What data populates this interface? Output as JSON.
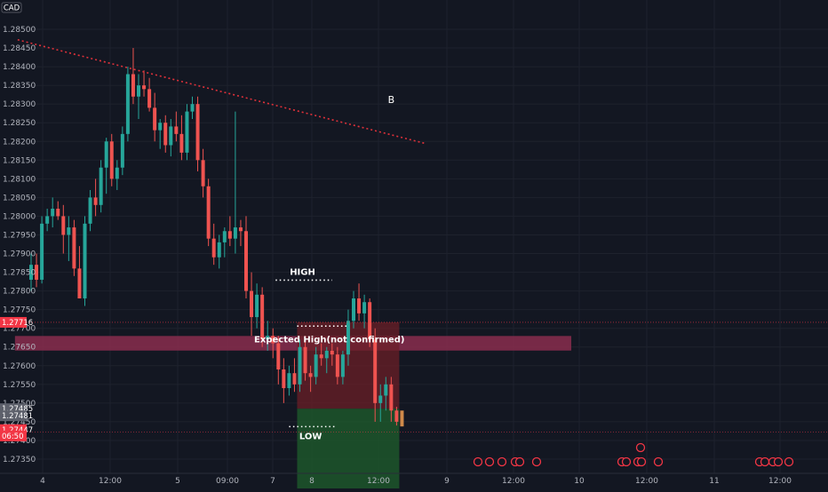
{
  "symbol_tag": "CAD",
  "colors": {
    "background": "#131722",
    "bullish": "#26a69a",
    "bearish": "#ef5350",
    "trendline": "#e0313a",
    "zone": "#8a2d4d",
    "stop_zone": "#6b1f27",
    "target_zone": "#1e5a2c",
    "price_tag_red": "#f23645",
    "price_tag_gray": "#5d606b",
    "axis_text": "#b2b5be",
    "dotted_line": "#ffffff"
  },
  "chart_data": {
    "type": "candlestick",
    "ylim": [
      1.273,
      1.2855
    ],
    "y_ticks": [
      "1.28500",
      "1.28450",
      "1.28400",
      "1.28350",
      "1.28300",
      "1.28250",
      "1.28200",
      "1.28150",
      "1.28100",
      "1.28050",
      "1.28000",
      "1.27950",
      "1.27900",
      "1.27850",
      "1.27800",
      "1.27750",
      "1.27700",
      "1.27650",
      "1.27600",
      "1.27550",
      "1.27500",
      "1.27450",
      "1.27400",
      "1.27350"
    ],
    "x_ticks": [
      "4",
      "12:00",
      "5",
      "09:00",
      "7",
      "8",
      "12:00",
      "9",
      "12:00",
      "10",
      "12:00",
      "11",
      "12:00"
    ],
    "grid": true,
    "candles": [
      [
        1.2783,
        1.279,
        1.278,
        1.2787
      ],
      [
        1.2787,
        1.279,
        1.2781,
        1.2783
      ],
      [
        1.2783,
        1.28,
        1.2782,
        1.2798
      ],
      [
        1.2798,
        1.2802,
        1.2796,
        1.28
      ],
      [
        1.28,
        1.2805,
        1.2797,
        1.2802
      ],
      [
        1.2802,
        1.2804,
        1.2799,
        1.28
      ],
      [
        1.28,
        1.2803,
        1.279,
        1.2795
      ],
      [
        1.2795,
        1.28,
        1.2788,
        1.2797
      ],
      [
        1.2797,
        1.2799,
        1.2784,
        1.2786
      ],
      [
        1.2786,
        1.2792,
        1.2779,
        1.2778
      ],
      [
        1.2778,
        1.28,
        1.2776,
        1.2798
      ],
      [
        1.2798,
        1.2807,
        1.2796,
        1.2805
      ],
      [
        1.2805,
        1.281,
        1.28,
        1.2803
      ],
      [
        1.2803,
        1.2815,
        1.2801,
        1.2813
      ],
      [
        1.2813,
        1.2821,
        1.2806,
        1.282
      ],
      [
        1.282,
        1.2822,
        1.2808,
        1.281
      ],
      [
        1.281,
        1.2815,
        1.2807,
        1.2813
      ],
      [
        1.2813,
        1.2824,
        1.2811,
        1.2822
      ],
      [
        1.2822,
        1.284,
        1.282,
        1.2838
      ],
      [
        1.2838,
        1.2845,
        1.283,
        1.2832
      ],
      [
        1.2832,
        1.2838,
        1.2826,
        1.2835
      ],
      [
        1.2835,
        1.2839,
        1.2832,
        1.2834
      ],
      [
        1.2834,
        1.2837,
        1.2828,
        1.2829
      ],
      [
        1.2829,
        1.2833,
        1.282,
        1.2823
      ],
      [
        1.2823,
        1.2826,
        1.2818,
        1.2825
      ],
      [
        1.2825,
        1.2827,
        1.2817,
        1.2819
      ],
      [
        1.2819,
        1.2826,
        1.2816,
        1.2824
      ],
      [
        1.2824,
        1.2828,
        1.282,
        1.2822
      ],
      [
        1.2822,
        1.2827,
        1.2815,
        1.2817
      ],
      [
        1.2817,
        1.283,
        1.2815,
        1.2828
      ],
      [
        1.2828,
        1.2832,
        1.2826,
        1.283
      ],
      [
        1.283,
        1.2832,
        1.2812,
        1.2815
      ],
      [
        1.2815,
        1.2818,
        1.2805,
        1.2808
      ],
      [
        1.2808,
        1.281,
        1.2792,
        1.2794
      ],
      [
        1.2794,
        1.2798,
        1.2787,
        1.2789
      ],
      [
        1.2789,
        1.2795,
        1.2786,
        1.2793
      ],
      [
        1.2793,
        1.2797,
        1.2789,
        1.2796
      ],
      [
        1.2796,
        1.28,
        1.2792,
        1.2794
      ],
      [
        1.2794,
        1.2828,
        1.279,
        1.2797
      ],
      [
        1.2797,
        1.2799,
        1.2792,
        1.2796
      ],
      [
        1.2796,
        1.28,
        1.2778,
        1.278
      ],
      [
        1.278,
        1.2785,
        1.2768,
        1.2773
      ],
      [
        1.2773,
        1.2782,
        1.277,
        1.2779
      ],
      [
        1.2779,
        1.2781,
        1.2765,
        1.2767
      ],
      [
        1.2767,
        1.2772,
        1.2764,
        1.2768
      ],
      [
        1.2768,
        1.277,
        1.2762,
        1.2766
      ],
      [
        1.2766,
        1.2768,
        1.2755,
        1.2759
      ],
      [
        1.2759,
        1.2762,
        1.275,
        1.2754
      ],
      [
        1.2754,
        1.276,
        1.2752,
        1.2758
      ],
      [
        1.2758,
        1.2762,
        1.2753,
        1.2755
      ],
      [
        1.2755,
        1.2767,
        1.2753,
        1.2765
      ],
      [
        1.2765,
        1.2768,
        1.2756,
        1.2758
      ],
      [
        1.2758,
        1.276,
        1.2753,
        1.2757
      ],
      [
        1.2757,
        1.2765,
        1.2755,
        1.2763
      ],
      [
        1.2763,
        1.2766,
        1.276,
        1.2762
      ],
      [
        1.2762,
        1.2765,
        1.2758,
        1.2764
      ],
      [
        1.2764,
        1.2766,
        1.276,
        1.2763
      ],
      [
        1.2763,
        1.2765,
        1.2755,
        1.2757
      ],
      [
        1.2757,
        1.2764,
        1.2755,
        1.2763
      ],
      [
        1.2763,
        1.2775,
        1.276,
        1.2772
      ],
      [
        1.2772,
        1.278,
        1.277,
        1.2778
      ],
      [
        1.2778,
        1.2782,
        1.2772,
        1.2774
      ],
      [
        1.2774,
        1.2779,
        1.277,
        1.2777
      ],
      [
        1.2777,
        1.2778,
        1.2765,
        1.2767
      ],
      [
        1.2767,
        1.277,
        1.2745,
        1.275
      ],
      [
        1.275,
        1.2755,
        1.2745,
        1.2752
      ],
      [
        1.2752,
        1.2757,
        1.2748,
        1.2755
      ],
      [
        1.2755,
        1.2757,
        1.2745,
        1.2748
      ],
      [
        1.2748,
        1.2749,
        1.2744,
        1.2745
      ]
    ],
    "trendline": {
      "from": {
        "candle": -2.5,
        "price": 1.28472
      },
      "to": {
        "candle": 73.5,
        "price": 1.28194
      }
    },
    "zone": {
      "from_candle": -3,
      "to_candle": 100.5,
      "top": 1.2767,
      "bottom": 1.2765
    },
    "position": {
      "from_candle": 49.5,
      "to_candle": 68.5,
      "stop": 1.27716,
      "entry": 1.27485,
      "target": 1.2733
    },
    "annotations": [
      {
        "text": "HIGH",
        "price": 1.27829,
        "from_candle": 45.5,
        "to_candle": 56.0,
        "label_candle": 50.5,
        "label_price": 1.2785
      },
      {
        "text": "Expected High(not confirmed)",
        "price": 1.27706,
        "from_candle": 49.5,
        "to_candle": 59.0,
        "label_candle": 55.5,
        "label_price": 1.2767
      },
      {
        "text": "LOW",
        "price": 1.27437,
        "from_candle": 48.0,
        "to_candle": 56.5,
        "label_candle": 52.0,
        "label_price": 1.2741
      },
      {
        "text": "B",
        "price": 1.2831,
        "label_candle": 67.0,
        "label_price": 1.2831
      }
    ],
    "price_tags": [
      {
        "text": "1.27716",
        "price": 1.27716,
        "color": "red"
      },
      {
        "text": "1.27485",
        "price": 1.27485,
        "color": "gray"
      },
      {
        "text": "1.27481",
        "price": 1.27466,
        "color": "gray"
      },
      {
        "text": "1.27447",
        "price": 1.27429,
        "color": "red"
      },
      {
        "text": "06:50",
        "price": 1.27412,
        "color": "red"
      }
    ]
  }
}
